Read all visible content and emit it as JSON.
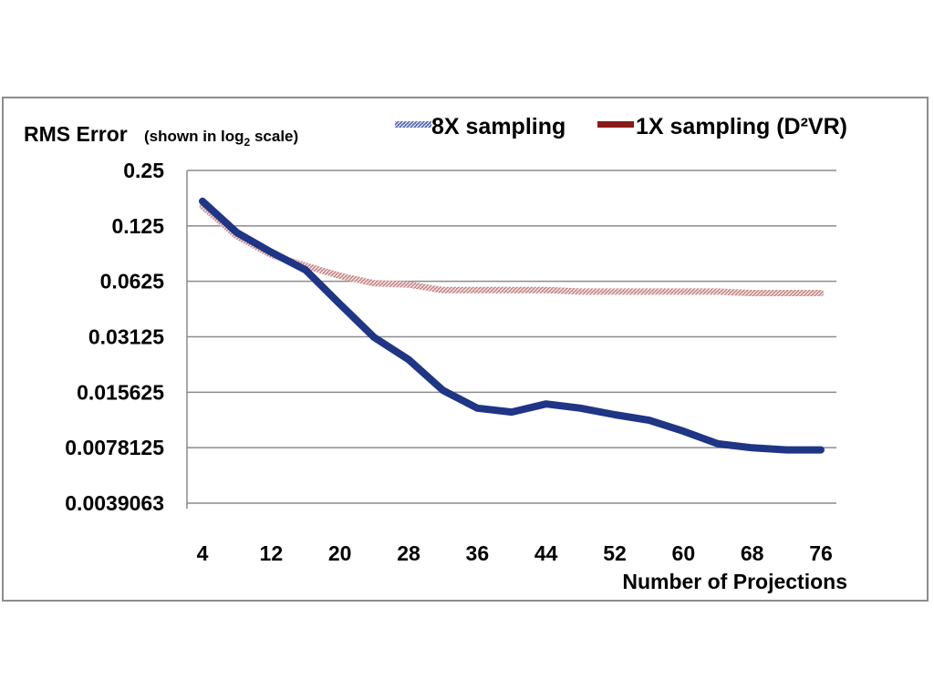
{
  "chart_data": {
    "type": "line",
    "ylabel": "RMS Error",
    "ylabel_note_prefix": "(shown in log",
    "ylabel_note_sub": "2",
    "ylabel_note_suffix": " scale)",
    "xlabel": "Number of Projections",
    "y_scale": "log2",
    "ylim": [
      0.0039063,
      0.25
    ],
    "xlim": [
      4,
      76
    ],
    "grid": true,
    "legend_position": "top-right",
    "x_ticks": [
      4,
      12,
      20,
      28,
      36,
      44,
      52,
      60,
      68,
      76
    ],
    "y_ticks": [
      "0.25",
      "0.125",
      "0.0625",
      "0.03125",
      "0.015625",
      "0.0078125",
      "0.0039063"
    ],
    "y_tick_values": [
      0.25,
      0.125,
      0.0625,
      0.03125,
      0.015625,
      0.0078125,
      0.0039063
    ],
    "x": [
      4,
      8,
      12,
      16,
      20,
      24,
      28,
      32,
      36,
      40,
      44,
      48,
      52,
      56,
      60,
      64,
      68,
      72,
      76
    ],
    "series": [
      {
        "name": "8X sampling",
        "color": "#1f3585",
        "values": [
          0.17,
          0.115,
          0.09,
          0.072,
          0.047,
          0.031,
          0.0235,
          0.016,
          0.0128,
          0.0122,
          0.0135,
          0.0128,
          0.0118,
          0.011,
          0.0096,
          0.0082,
          0.0078,
          0.0076,
          0.0076
        ]
      },
      {
        "name": "1X sampling (D²VR)",
        "color": "#8b1a1a",
        "values": [
          0.16,
          0.11,
          0.087,
          0.076,
          0.067,
          0.061,
          0.06,
          0.056,
          0.056,
          0.056,
          0.056,
          0.055,
          0.055,
          0.055,
          0.055,
          0.055,
          0.054,
          0.054,
          0.054
        ]
      }
    ]
  }
}
